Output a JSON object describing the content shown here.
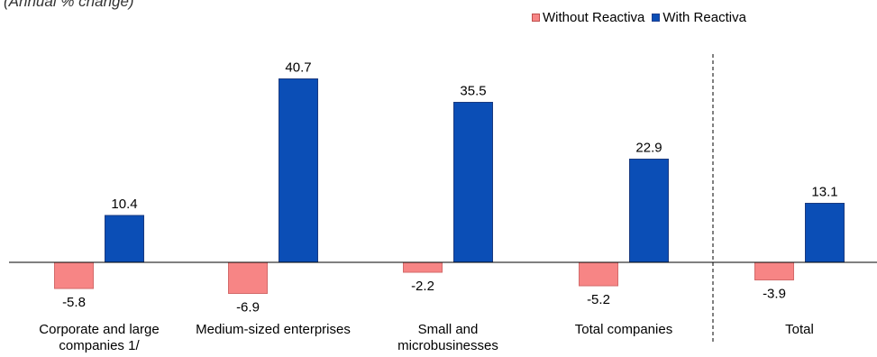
{
  "subtitle": "(Annual % change)",
  "legend": [
    {
      "name": "Without Reactiva"
    },
    {
      "name": "With Reactiva"
    }
  ],
  "colors": {
    "without": "#f78585",
    "with": "#0b4eb6"
  },
  "chart_data": {
    "type": "bar",
    "categories": [
      "Corporate and large companies 1/",
      "Medium-sized enterprises",
      "Small and microbusinesses",
      "Total companies",
      "Total"
    ],
    "series": [
      {
        "name": "Without Reactiva",
        "values": [
          -5.8,
          -6.9,
          -2.2,
          -5.2,
          -3.9
        ],
        "labels": [
          "-5.8",
          "-6.9",
          "-2.2",
          "-5.2",
          "-3.9"
        ]
      },
      {
        "name": "With Reactiva",
        "values": [
          10.4,
          40.7,
          35.5,
          22.9,
          13.1
        ],
        "labels": [
          "10.4",
          "40.7",
          "35.5",
          "22.9",
          "13.1"
        ]
      }
    ],
    "title": "",
    "xlabel": "",
    "ylabel": "",
    "ylim": [
      -10,
      45
    ],
    "grid": false,
    "legend_position": "top-right",
    "divider_after_category": 3
  }
}
